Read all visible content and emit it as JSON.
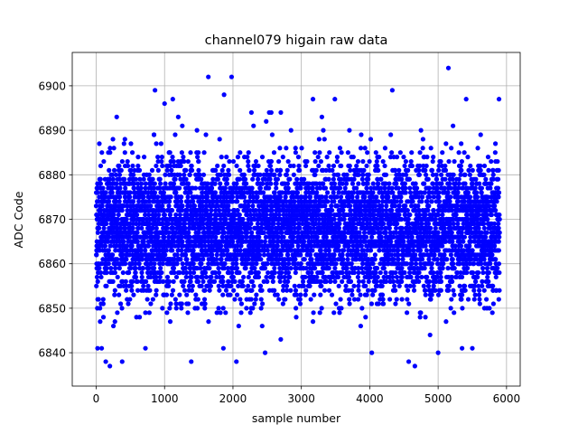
{
  "chart_data": {
    "type": "scatter",
    "title": "channel079 higain raw data",
    "xlabel": "sample number",
    "ylabel": "ADC Code",
    "xlim": [
      -350,
      6200
    ],
    "ylim": [
      6832.5,
      6907.5
    ],
    "xticks": [
      0,
      1000,
      2000,
      3000,
      4000,
      5000,
      6000
    ],
    "yticks": [
      6840,
      6850,
      6860,
      6870,
      6880,
      6890,
      6900
    ],
    "xtick_labels": [
      "0",
      "1000",
      "2000",
      "3000",
      "4000",
      "5000",
      "6000"
    ],
    "ytick_labels": [
      "6840",
      "6850",
      "6860",
      "6870",
      "6880",
      "6890",
      "6900"
    ],
    "grid": true,
    "marker_color": "#0000ff",
    "series": [
      {
        "n_points": 5900,
        "x_range": [
          0,
          5899
        ],
        "typical_range": [
          6850,
          6885
        ],
        "center": 6868,
        "notable_points": [
          [
            1640,
            6902
          ],
          [
            1980,
            6902
          ],
          [
            5150,
            6904
          ],
          [
            1870,
            6898
          ],
          [
            860,
            6899
          ],
          [
            1000,
            6896
          ],
          [
            1120,
            6897
          ],
          [
            1200,
            6893
          ],
          [
            4330,
            6899
          ],
          [
            5410,
            6897
          ],
          [
            5890,
            6897
          ],
          [
            3170,
            6897
          ],
          [
            3490,
            6897
          ],
          [
            2560,
            6894
          ],
          [
            3300,
            6893
          ],
          [
            420,
            6885
          ],
          [
            300,
            6893
          ],
          [
            2270,
            6894
          ],
          [
            2530,
            6894
          ],
          [
            2700,
            6894
          ],
          [
            200,
            6837
          ],
          [
            380,
            6838
          ],
          [
            140,
            6838
          ],
          [
            20,
            6841
          ],
          [
            80,
            6841
          ],
          [
            1390,
            6838
          ],
          [
            2050,
            6838
          ],
          [
            2470,
            6840
          ],
          [
            4030,
            6840
          ],
          [
            4570,
            6838
          ],
          [
            4660,
            6837
          ],
          [
            5000,
            6840
          ],
          [
            5350,
            6841
          ],
          [
            5500,
            6841
          ],
          [
            1860,
            6841
          ],
          [
            720,
            6841
          ]
        ]
      }
    ]
  }
}
